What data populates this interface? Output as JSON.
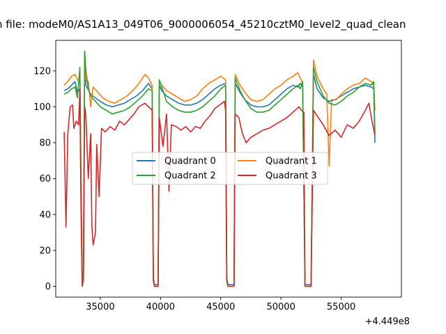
{
  "chart_data": {
    "type": "line",
    "title": "n file: modeM0/AS1A13_049T06_9000006054_45210cztM0_level2_quad_clean",
    "offset_label": "+4.449e8",
    "xlim": [
      31300,
      60000
    ],
    "ylim": [
      -6,
      137
    ],
    "x_ticks": [
      35000,
      40000,
      45000,
      50000,
      55000
    ],
    "x_tick_labels": [
      "35000",
      "40000",
      "45000",
      "50000",
      "55000"
    ],
    "y_ticks": [
      0,
      20,
      40,
      60,
      80,
      100,
      120
    ],
    "y_tick_labels": [
      "0",
      "20",
      "40",
      "60",
      "80",
      "100",
      "120"
    ],
    "legend": {
      "placement": "center",
      "columns": 2
    },
    "series": [
      {
        "name": "Quadrant 0",
        "color": "#1f77b4",
        "points": [
          [
            32000,
            109
          ],
          [
            32300,
            110
          ],
          [
            32600,
            112
          ],
          [
            32900,
            114
          ],
          [
            33100,
            108
          ],
          [
            33300,
            110
          ],
          [
            33400,
            50
          ],
          [
            33500,
            2
          ],
          [
            33600,
            5
          ],
          [
            33700,
            130
          ],
          [
            33800,
            112
          ],
          [
            34200,
            107
          ],
          [
            34600,
            105
          ],
          [
            35000,
            103
          ],
          [
            35500,
            101
          ],
          [
            36000,
            100
          ],
          [
            36500,
            101
          ],
          [
            37000,
            102
          ],
          [
            37500,
            104
          ],
          [
            38000,
            106
          ],
          [
            38500,
            109
          ],
          [
            39000,
            113
          ],
          [
            39300,
            110
          ],
          [
            39400,
            5
          ],
          [
            39500,
            1
          ],
          [
            39800,
            1
          ],
          [
            39900,
            112
          ],
          [
            40100,
            109
          ],
          [
            40500,
            106
          ],
          [
            41000,
            104
          ],
          [
            41500,
            102
          ],
          [
            42000,
            101
          ],
          [
            42500,
            101
          ],
          [
            43000,
            102
          ],
          [
            43500,
            104
          ],
          [
            44000,
            107
          ],
          [
            44500,
            110
          ],
          [
            45000,
            112
          ],
          [
            45400,
            113
          ],
          [
            45500,
            5
          ],
          [
            45600,
            1
          ],
          [
            46100,
            1
          ],
          [
            46200,
            113
          ],
          [
            46600,
            108
          ],
          [
            47000,
            104
          ],
          [
            47500,
            101
          ],
          [
            48000,
            100
          ],
          [
            48500,
            100
          ],
          [
            49000,
            101
          ],
          [
            49500,
            104
          ],
          [
            50000,
            107
          ],
          [
            50500,
            110
          ],
          [
            51000,
            112
          ],
          [
            51400,
            111
          ],
          [
            51600,
            113
          ],
          [
            51800,
            111
          ],
          [
            52000,
            1
          ],
          [
            52500,
            1
          ],
          [
            52700,
            118
          ],
          [
            53000,
            110
          ],
          [
            53500,
            105
          ],
          [
            54000,
            103
          ],
          [
            54500,
            104
          ],
          [
            55000,
            106
          ],
          [
            55500,
            108
          ],
          [
            56000,
            110
          ],
          [
            56500,
            111
          ],
          [
            57000,
            112
          ],
          [
            57500,
            111
          ],
          [
            57700,
            110
          ],
          [
            57800,
            80
          ]
        ]
      },
      {
        "name": "Quadrant 1",
        "color": "#ff7f0e",
        "points": [
          [
            32000,
            112
          ],
          [
            32300,
            114
          ],
          [
            32600,
            117
          ],
          [
            32900,
            118
          ],
          [
            33100,
            115
          ],
          [
            33300,
            113
          ],
          [
            33400,
            40
          ],
          [
            33500,
            0
          ],
          [
            33600,
            3
          ],
          [
            33700,
            128
          ],
          [
            33800,
            115
          ],
          [
            34000,
            114
          ],
          [
            34200,
            100
          ],
          [
            34400,
            111
          ],
          [
            34800,
            108
          ],
          [
            35200,
            105
          ],
          [
            35700,
            103
          ],
          [
            36200,
            102
          ],
          [
            36700,
            104
          ],
          [
            37200,
            106
          ],
          [
            37700,
            109
          ],
          [
            38200,
            113
          ],
          [
            38700,
            118
          ],
          [
            39000,
            116
          ],
          [
            39300,
            112
          ],
          [
            39400,
            5
          ],
          [
            39500,
            0
          ],
          [
            39800,
            0
          ],
          [
            39900,
            114
          ],
          [
            40100,
            112
          ],
          [
            40500,
            109
          ],
          [
            41000,
            107
          ],
          [
            41500,
            105
          ],
          [
            42000,
            103
          ],
          [
            42500,
            104
          ],
          [
            43000,
            106
          ],
          [
            43500,
            110
          ],
          [
            44000,
            113
          ],
          [
            44500,
            115
          ],
          [
            45000,
            117
          ],
          [
            45400,
            115
          ],
          [
            45500,
            5
          ],
          [
            45600,
            0
          ],
          [
            46100,
            0
          ],
          [
            46200,
            118
          ],
          [
            46600,
            112
          ],
          [
            47000,
            108
          ],
          [
            47500,
            104
          ],
          [
            48000,
            103
          ],
          [
            48500,
            104
          ],
          [
            49000,
            107
          ],
          [
            49500,
            110
          ],
          [
            50000,
            112
          ],
          [
            50500,
            115
          ],
          [
            51000,
            117
          ],
          [
            51400,
            119
          ],
          [
            51600,
            116
          ],
          [
            51800,
            113
          ],
          [
            52000,
            0
          ],
          [
            52500,
            0
          ],
          [
            52700,
            126
          ],
          [
            53000,
            117
          ],
          [
            53500,
            110
          ],
          [
            53800,
            107
          ],
          [
            54000,
            67
          ],
          [
            54200,
            104
          ],
          [
            54600,
            104
          ],
          [
            55000,
            107
          ],
          [
            55500,
            110
          ],
          [
            56000,
            112
          ],
          [
            56500,
            113
          ],
          [
            57000,
            116
          ],
          [
            57500,
            114
          ],
          [
            57700,
            112
          ],
          [
            57800,
            98
          ]
        ]
      },
      {
        "name": "Quadrant 2",
        "color": "#2ca02c",
        "points": [
          [
            32000,
            107
          ],
          [
            32300,
            108
          ],
          [
            32600,
            110
          ],
          [
            32900,
            111
          ],
          [
            33100,
            105
          ],
          [
            33300,
            122
          ],
          [
            33400,
            60
          ],
          [
            33500,
            1
          ],
          [
            33600,
            8
          ],
          [
            33700,
            131
          ],
          [
            33800,
            120
          ],
          [
            34000,
            110
          ],
          [
            34200,
            106
          ],
          [
            34600,
            103
          ],
          [
            35000,
            100
          ],
          [
            35500,
            98
          ],
          [
            36000,
            96
          ],
          [
            36500,
            97
          ],
          [
            37000,
            98
          ],
          [
            37500,
            100
          ],
          [
            38000,
            103
          ],
          [
            38500,
            106
          ],
          [
            39000,
            110
          ],
          [
            39300,
            109
          ],
          [
            39400,
            5
          ],
          [
            39500,
            0
          ],
          [
            39800,
            0
          ],
          [
            39900,
            115
          ],
          [
            40100,
            111
          ],
          [
            40500,
            103
          ],
          [
            41000,
            100
          ],
          [
            41500,
            98
          ],
          [
            42000,
            97
          ],
          [
            42500,
            97
          ],
          [
            43000,
            98
          ],
          [
            43500,
            100
          ],
          [
            44000,
            103
          ],
          [
            44500,
            106
          ],
          [
            45000,
            110
          ],
          [
            45400,
            112
          ],
          [
            45500,
            5
          ],
          [
            45600,
            0
          ],
          [
            46100,
            0
          ],
          [
            46200,
            116
          ],
          [
            46600,
            109
          ],
          [
            47000,
            104
          ],
          [
            47500,
            99
          ],
          [
            48000,
            97
          ],
          [
            48500,
            97
          ],
          [
            49000,
            98
          ],
          [
            49500,
            101
          ],
          [
            50000,
            104
          ],
          [
            50500,
            107
          ],
          [
            51000,
            110
          ],
          [
            51400,
            112
          ],
          [
            51600,
            110
          ],
          [
            51800,
            114
          ],
          [
            52000,
            0
          ],
          [
            52500,
            0
          ],
          [
            52700,
            122
          ],
          [
            53000,
            114
          ],
          [
            53500,
            106
          ],
          [
            54000,
            102
          ],
          [
            54500,
            101
          ],
          [
            55000,
            103
          ],
          [
            55500,
            106
          ],
          [
            56000,
            108
          ],
          [
            56500,
            111
          ],
          [
            57000,
            113
          ],
          [
            57500,
            112
          ],
          [
            57700,
            114
          ],
          [
            57800,
            85
          ]
        ]
      },
      {
        "name": "Quadrant 3",
        "color": "#d62728",
        "points": [
          [
            32000,
            86
          ],
          [
            32150,
            33
          ],
          [
            32300,
            85
          ],
          [
            32500,
            100
          ],
          [
            32700,
            101
          ],
          [
            32800,
            88
          ],
          [
            33000,
            92
          ],
          [
            33200,
            90
          ],
          [
            33300,
            110
          ],
          [
            33400,
            45
          ],
          [
            33500,
            0
          ],
          [
            33600,
            5
          ],
          [
            33700,
            100
          ],
          [
            33800,
            95
          ],
          [
            34000,
            60
          ],
          [
            34200,
            85
          ],
          [
            34300,
            34
          ],
          [
            34400,
            23
          ],
          [
            34600,
            30
          ],
          [
            34700,
            79
          ],
          [
            34900,
            50
          ],
          [
            35100,
            88
          ],
          [
            35400,
            86
          ],
          [
            35800,
            89
          ],
          [
            36200,
            87
          ],
          [
            36600,
            92
          ],
          [
            37000,
            90
          ],
          [
            37400,
            93
          ],
          [
            37800,
            96
          ],
          [
            38200,
            100
          ],
          [
            38700,
            102
          ],
          [
            39000,
            100
          ],
          [
            39300,
            98
          ],
          [
            39400,
            3
          ],
          [
            39500,
            0
          ],
          [
            39800,
            0
          ],
          [
            39900,
            94
          ],
          [
            40200,
            78
          ],
          [
            40500,
            96
          ],
          [
            40700,
            53
          ],
          [
            40900,
            90
          ],
          [
            41300,
            89
          ],
          [
            41700,
            87
          ],
          [
            42100,
            89
          ],
          [
            42500,
            86
          ],
          [
            42900,
            89
          ],
          [
            43300,
            88
          ],
          [
            43700,
            92
          ],
          [
            44100,
            95
          ],
          [
            44500,
            99
          ],
          [
            44900,
            101
          ],
          [
            45300,
            103
          ],
          [
            45400,
            98
          ],
          [
            45500,
            3
          ],
          [
            45600,
            0
          ],
          [
            46100,
            0
          ],
          [
            46200,
            96
          ],
          [
            46500,
            94
          ],
          [
            46800,
            85
          ],
          [
            47100,
            80
          ],
          [
            47500,
            83
          ],
          [
            48000,
            85
          ],
          [
            48500,
            87
          ],
          [
            49000,
            88
          ],
          [
            49500,
            90
          ],
          [
            50000,
            92
          ],
          [
            50500,
            94
          ],
          [
            51000,
            97
          ],
          [
            51500,
            100
          ],
          [
            51700,
            98
          ],
          [
            51900,
            97
          ],
          [
            52000,
            0
          ],
          [
            52500,
            0
          ],
          [
            52700,
            98
          ],
          [
            53000,
            95
          ],
          [
            53500,
            90
          ],
          [
            54000,
            84
          ],
          [
            54500,
            87
          ],
          [
            55000,
            83
          ],
          [
            55500,
            90
          ],
          [
            56000,
            88
          ],
          [
            56500,
            92
          ],
          [
            57000,
            98
          ],
          [
            57300,
            102
          ],
          [
            57500,
            94
          ],
          [
            57800,
            84
          ]
        ]
      }
    ]
  }
}
